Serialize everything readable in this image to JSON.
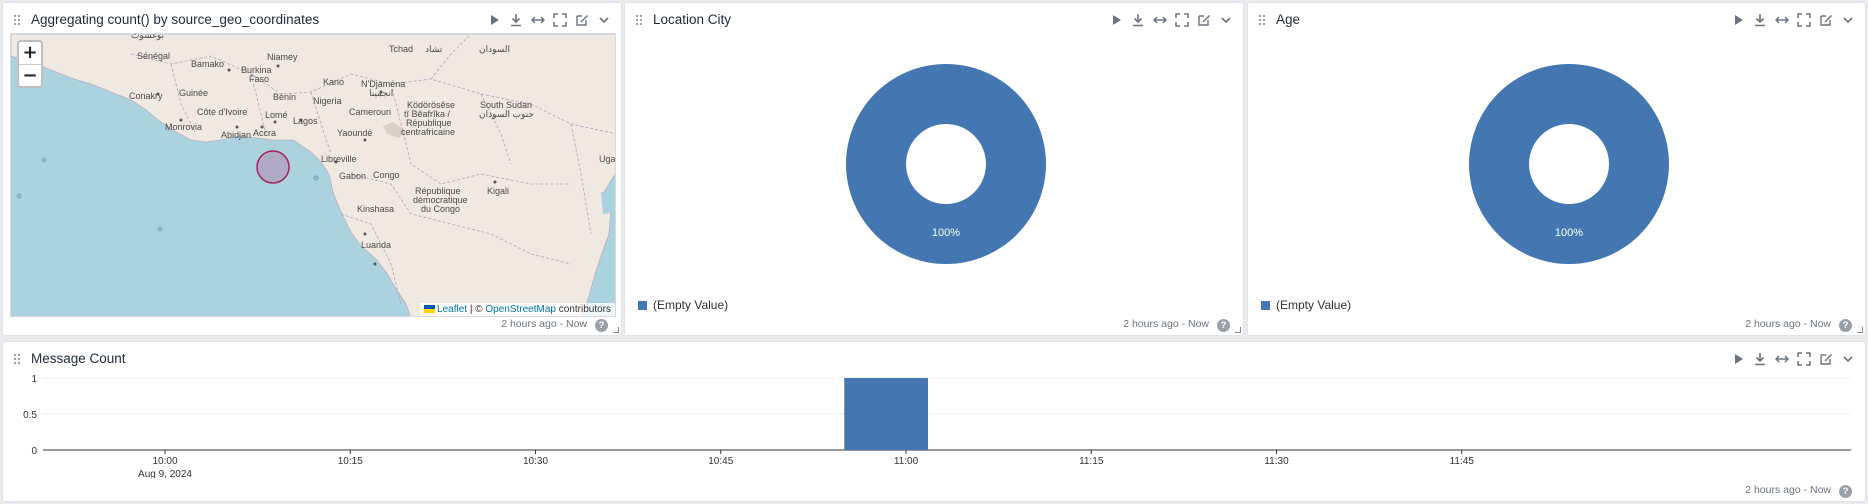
{
  "colors": {
    "series": "#4477b2",
    "map_bubble": "#b06a95",
    "water": "#aad3df",
    "land": "#efe9e1"
  },
  "widgets": {
    "map": {
      "title": "Aggregating count() by source_geo_coordinates",
      "icons": [
        "play-icon",
        "download-icon",
        "expand-horizontal-icon",
        "fullscreen-icon",
        "edit-icon",
        "chevron-down-icon"
      ],
      "zoom_in": "+",
      "zoom_out": "−",
      "attribution": {
        "leaflet": "Leaflet",
        "separator": " | © ",
        "osm": "OpenStreetMap",
        "suffix": " contributors"
      },
      "labels": {
        "senegal": "Sénégal",
        "bamako": "Bamako",
        "niamey": "Niamey",
        "burkina": "Burkina",
        "faso": "Faso",
        "tchad": "Tchad",
        "tchad_ar": "تشاد",
        "sudan_ar": "السودان",
        "kano": "Kano",
        "ndjamena": "N'Djaména",
        "ndjamena_ar": "انجمينا",
        "conakry": "Conakry",
        "guinee": "Guinée",
        "benin": "Bénin",
        "nigeria": "Nigeria",
        "cote": "Côte d'Ivoire",
        "lome": "Lomé",
        "cameroun": "Cameroun",
        "kodorosese": "Ködörösêse",
        "beafrika": "tî Bêafrîka /",
        "republique": "République",
        "centrafricaine": "centrafricaine",
        "south_sudan": "South Sudan",
        "south_sudan_ar": "جنوب السودان",
        "monrovia": "Monrovia",
        "lagos": "Lagos",
        "accra": "Accra",
        "abidjan": "Abidjan",
        "yaounde": "Yaoundé",
        "libreville": "Libreville",
        "uga": "Uga",
        "gabon": "Gabon",
        "congo": "Congo",
        "rep_dem": "République",
        "democratique": "démocratique",
        "du_congo": "du Congo",
        "kigali": "Kigali",
        "kinshasa": "Kinshasa",
        "luanda": "Luanda",
        "top_label": "بوغشوت"
      },
      "time_range": "2 hours ago - Now"
    },
    "city": {
      "title": "Location City",
      "icons": [
        "play-icon",
        "download-icon",
        "expand-horizontal-icon",
        "fullscreen-icon",
        "edit-icon",
        "chevron-down-icon"
      ],
      "slice_label": "100%",
      "legend": "(Empty Value)",
      "time_range": "2 hours ago - Now"
    },
    "age": {
      "title": "Age",
      "icons": [
        "play-icon",
        "download-icon",
        "expand-horizontal-icon",
        "fullscreen-icon",
        "edit-icon",
        "chevron-down-icon"
      ],
      "slice_label": "100%",
      "legend": "(Empty Value)",
      "time_range": "2 hours ago - Now"
    },
    "count": {
      "title": "Message Count",
      "icons": [
        "play-icon",
        "download-icon",
        "expand-horizontal-icon",
        "fullscreen-icon",
        "edit-icon",
        "chevron-down-icon"
      ],
      "time_range": "2 hours ago - Now"
    }
  },
  "chart_data": [
    {
      "type": "pie",
      "title": "Location City",
      "slices": [
        {
          "label": "(Empty Value)",
          "value": 100
        }
      ],
      "legend": "bottom-left"
    },
    {
      "type": "pie",
      "title": "Age",
      "slices": [
        {
          "label": "(Empty Value)",
          "value": 100
        }
      ],
      "legend": "bottom-left"
    },
    {
      "type": "bar",
      "title": "Message Count",
      "x_ticks": [
        "10:00",
        "10:15",
        "10:30",
        "10:45",
        "11:00",
        "11:15",
        "11:30",
        "11:45"
      ],
      "x_date": "Aug 9, 2024",
      "y_ticks": [
        "0",
        "0.5",
        "1"
      ],
      "ylim": [
        0,
        1
      ],
      "bars": [
        {
          "x_start": "10:55",
          "x_end": "11:00",
          "value": 1
        }
      ],
      "grid": true
    }
  ]
}
